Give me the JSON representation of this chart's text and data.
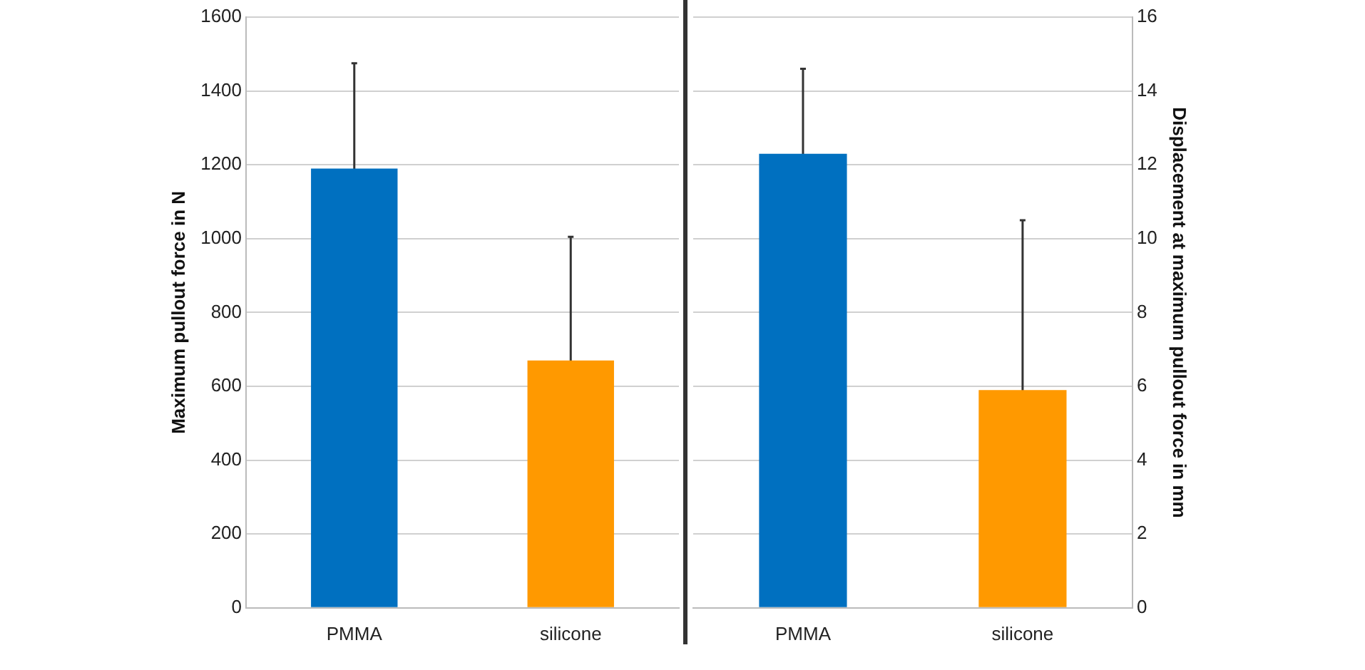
{
  "chart_data": [
    {
      "type": "bar",
      "ylabel": "Maximum pullout force in N",
      "categories": [
        "PMMA",
        "silicone"
      ],
      "values": [
        1190,
        670
      ],
      "colors": [
        "#0070c0",
        "#ff9900"
      ],
      "errors": [
        285,
        335
      ],
      "ylim": [
        0,
        1600
      ],
      "yticks": [
        0,
        200,
        400,
        600,
        800,
        1000,
        1200,
        1400,
        1600
      ],
      "grid": "y"
    },
    {
      "type": "bar",
      "y2label": "Displacement at maximum pullout force in mm",
      "categories": [
        "PMMA",
        "silicone"
      ],
      "series": [
        {
          "axis": "y2",
          "values": [
            12.3,
            5.9
          ],
          "colors": [
            "#0070c0",
            "#ff9900"
          ],
          "errors": [
            2.3,
            4.6
          ]
        }
      ],
      "y2lim": [
        0,
        16
      ],
      "y2ticks": [
        0,
        2,
        4,
        6,
        8,
        10,
        12,
        14,
        16
      ],
      "grid": "y"
    }
  ]
}
